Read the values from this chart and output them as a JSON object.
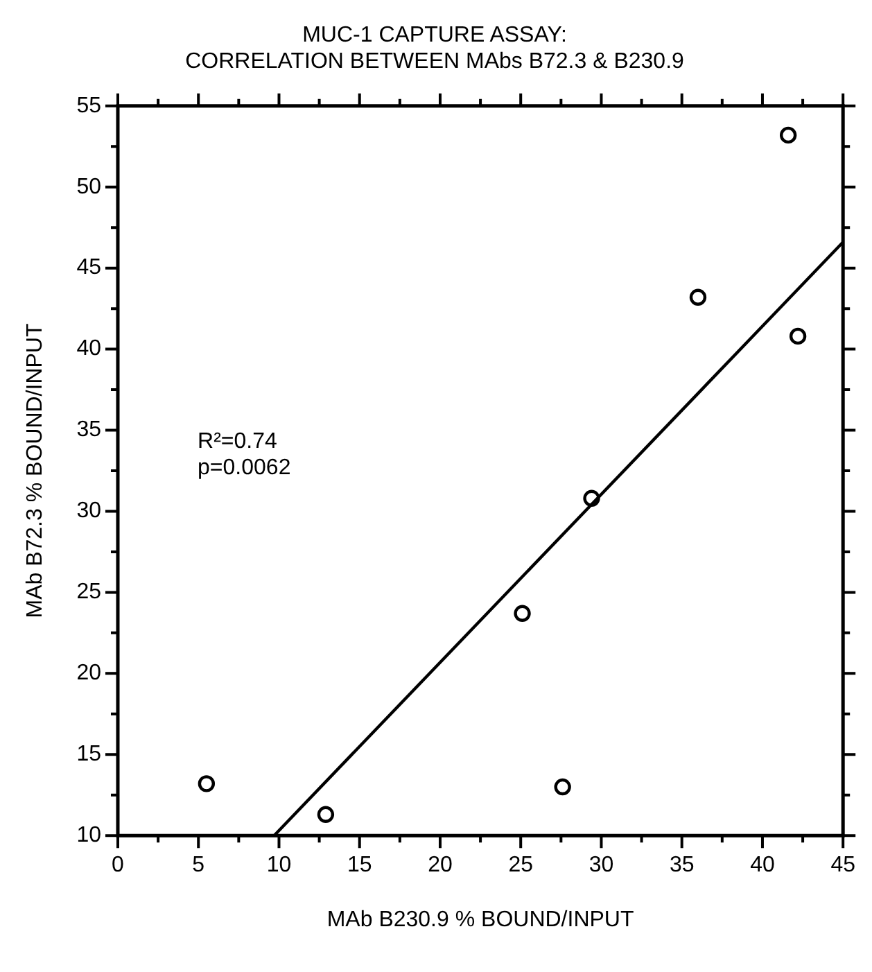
{
  "chart_data": {
    "type": "scatter",
    "title": "MUC-1 CAPTURE ASSAY:\nCORRELATION BETWEEN MAbs B72.3 & B230.9",
    "xlabel": "MAb B230.9 % BOUND/INPUT",
    "ylabel": "MAb B72.3 % BOUND/INPUT",
    "series": [
      {
        "color": "#000000",
        "marker": "circle",
        "x": [
          5.5,
          12.9,
          27.6,
          25.1,
          29.4,
          36.0,
          41.6,
          42.2
        ],
        "values": [
          13.2,
          11.3,
          13.0,
          23.7,
          30.8,
          43.2,
          53.2,
          40.8
        ]
      },
      {
        "type": "line",
        "marker": "none",
        "color": "#000000",
        "x": [
          9.7,
          45
        ],
        "values": [
          10,
          46.6
        ]
      }
    ],
    "xlim": [
      0,
      45
    ],
    "ylim": [
      10,
      55
    ],
    "xticks": [
      0,
      {
        "value": 2.5,
        "label": null
      },
      5,
      {
        "value": 7.5,
        "label": null
      },
      10,
      {
        "value": 12.5,
        "label": null
      },
      15,
      {
        "value": 17.5,
        "label": null
      },
      20,
      {
        "value": 22.5,
        "label": null
      },
      25,
      {
        "value": 27.5,
        "label": null
      },
      30,
      {
        "value": 32.5,
        "label": null
      },
      35,
      {
        "value": 37.5,
        "label": null
      },
      40,
      {
        "value": 42.5,
        "label": null
      },
      45
    ],
    "yticks": [
      10,
      {
        "value": 12.5,
        "label": null
      },
      15,
      {
        "value": 17.5,
        "label": null
      },
      20,
      {
        "value": 22.5,
        "label": null
      },
      25,
      {
        "value": 27.5,
        "label": null
      },
      30,
      {
        "value": 32.5,
        "label": null
      },
      35,
      {
        "value": 37.5,
        "label": null
      },
      40,
      {
        "value": 42.5,
        "label": null
      },
      45,
      {
        "value": 47.5,
        "label": null
      },
      50,
      {
        "value": 52.5,
        "label": null
      },
      55
    ],
    "annotations": [
      "R²=0.74",
      "p=0.0062"
    ],
    "grid": false,
    "legend": false,
    "line_style": "solid"
  }
}
